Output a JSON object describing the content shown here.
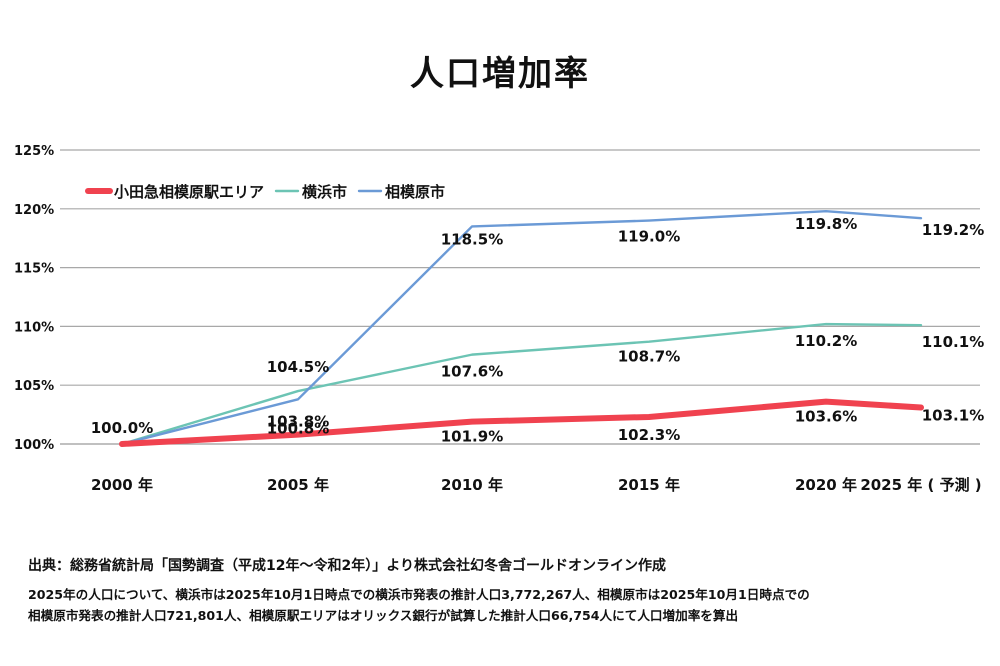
{
  "chart_data": {
    "type": "line",
    "title": "人口増加率",
    "xlabel": "",
    "ylabel": "",
    "categories": [
      "2000 年",
      "2005 年",
      "2010 年",
      "2015 年",
      "2020 年",
      "2025 年 ( 予測 )"
    ],
    "y_ticks": [
      "100%",
      "105%",
      "110%",
      "115%",
      "120%",
      "125%"
    ],
    "ylim": [
      100,
      125
    ],
    "grid": true,
    "legend_position": "top-left",
    "series": [
      {
        "name": "小田急相模原駅エリア",
        "color": "#f0424f",
        "values": [
          100.0,
          100.8,
          101.9,
          102.3,
          103.6,
          103.1
        ],
        "labels": [
          "",
          "100.8%",
          "101.9%",
          "102.3%",
          "103.6%",
          "103.1%"
        ]
      },
      {
        "name": "横浜市",
        "color": "#6cc4b4",
        "values": [
          100.0,
          104.5,
          107.6,
          108.7,
          110.2,
          110.1
        ],
        "labels": [
          "100.0%",
          "104.5%",
          "107.6%",
          "108.7%",
          "110.2%",
          "110.1%"
        ]
      },
      {
        "name": "相模原市",
        "color": "#6b9ad6",
        "values": [
          100.0,
          103.8,
          118.5,
          119.0,
          119.8,
          119.2
        ],
        "labels": [
          "",
          "103.8%",
          "118.5%",
          "119.0%",
          "119.8%",
          "119.2%"
        ]
      }
    ]
  },
  "notes": {
    "source": "出典：総務省統計局「国勢調査（平成12年〜令和2年）」より株式会社幻冬舎ゴールドオンライン作成",
    "footnote_line1": "2025年の人口について、横浜市は2025年10月1日時点での横浜市発表の推計人口3,772,267人、相模原市は2025年10月1日時点での",
    "footnote_line2": "相模原市発表の推計人口721,801人、相模原駅エリアはオリックス銀行が試算した推計人口66,754人にて人口増加率を算出"
  }
}
